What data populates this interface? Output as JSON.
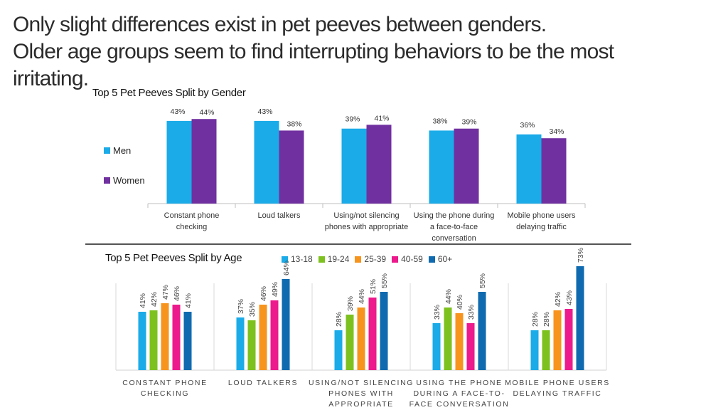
{
  "headline": {
    "line1": "Only slight differences exist in pet peeves between genders.",
    "line2": "Older age groups seem to find interrupting behaviors to be the most",
    "line3": "irritating."
  },
  "chart_data": [
    {
      "type": "bar",
      "title": "Top 5 Pet Peeves Split by Gender",
      "categories": [
        [
          "Constant phone",
          "checking"
        ],
        [
          "Loud talkers"
        ],
        [
          "Using/not silencing",
          "phones with appropriate"
        ],
        [
          "Using the phone during",
          "a face-to-face",
          "conversation"
        ],
        [
          "Mobile phone users",
          "delaying traffic"
        ]
      ],
      "series": [
        {
          "name": "Men",
          "color": "#1AABE8",
          "values": [
            43,
            43,
            39,
            38,
            36
          ]
        },
        {
          "name": "Women",
          "color": "#7030A0",
          "values": [
            44,
            38,
            41,
            39,
            34
          ]
        }
      ],
      "value_suffix": "%",
      "legend": "left",
      "xlabel": "",
      "ylabel": ""
    },
    {
      "type": "bar",
      "title": "Top 5 Pet Peeves Split by Age",
      "categories": [
        [
          "CONSTANT PHONE",
          "CHECKING"
        ],
        [
          "LOUD TALKERS"
        ],
        [
          "USING/NOT SILENCING",
          "PHONES WITH",
          "APPROPRIATE"
        ],
        [
          "USING THE PHONE",
          "DURING A FACE-TO-",
          "FACE CONVERSATION"
        ],
        [
          "MOBILE PHONE USERS",
          "DELAYING TRAFFIC"
        ]
      ],
      "series": [
        {
          "name": "13-18",
          "color": "#1AABE8",
          "values": [
            41,
            37,
            28,
            33,
            28
          ]
        },
        {
          "name": "19-24",
          "color": "#7DC11F",
          "values": [
            42,
            35,
            39,
            44,
            28
          ]
        },
        {
          "name": "25-39",
          "color": "#F7941D",
          "values": [
            47,
            46,
            44,
            40,
            42
          ]
        },
        {
          "name": "40-59",
          "color": "#EC1A8C",
          "values": [
            46,
            49,
            51,
            33,
            43
          ]
        },
        {
          "name": "60+",
          "color": "#0F6AAF",
          "values": [
            41,
            64,
            55,
            55,
            73
          ]
        }
      ],
      "value_suffix": "%",
      "legend": "top",
      "xlabel": "",
      "ylabel": ""
    }
  ]
}
